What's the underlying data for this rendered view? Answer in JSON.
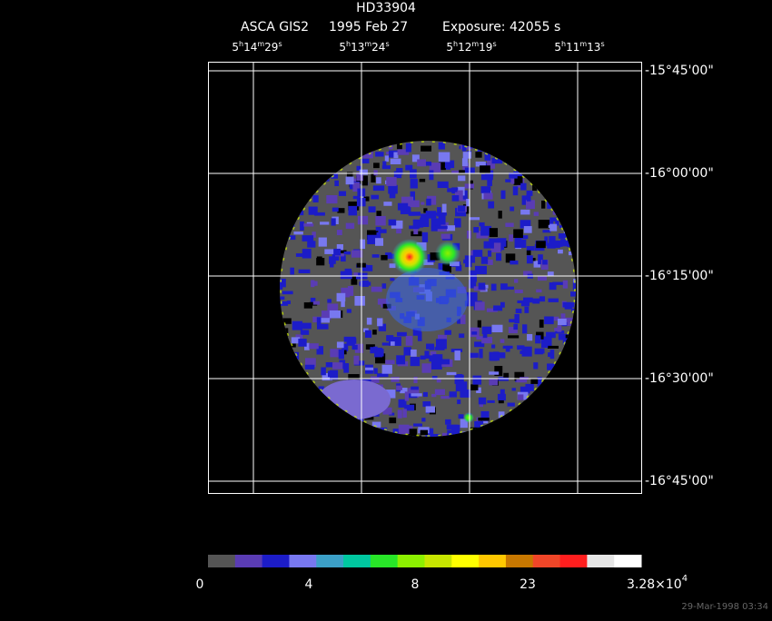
{
  "header": {
    "title": "HD33904",
    "instrument": "ASCA GIS2",
    "date": "1995 Feb 27",
    "exposure": "Exposure: 42055 s"
  },
  "ra_labels": [
    [
      "5",
      "h",
      "14",
      "m",
      "29",
      "s"
    ],
    [
      "5",
      "h",
      "13",
      "m",
      "24",
      "s"
    ],
    [
      "5",
      "h",
      "12",
      "m",
      "19",
      "s"
    ],
    [
      "5",
      "h",
      "11",
      "m",
      "13",
      "s"
    ]
  ],
  "dec_labels": [
    "-15°45'00\"",
    "-16°00'00\"",
    "-16°15'00\"",
    "-16°30'00\"",
    "-16°45'00\""
  ],
  "colorbar": {
    "colors": [
      "#555555",
      "#5a3cb4",
      "#1c1cc8",
      "#7878f0",
      "#3ca0c8",
      "#00c8a0",
      "#28e628",
      "#8cf000",
      "#c8e600",
      "#ffff00",
      "#ffc800",
      "#c87800",
      "#f04628",
      "#ff1e1e",
      "#e6e6e6",
      "#ffffff"
    ],
    "labels": [
      "0",
      "4",
      "8",
      "23"
    ],
    "max_label": {
      "mantissa": "3.28×10",
      "exponent": "4"
    }
  },
  "timestamp": "29-Mar-1998 03:34"
}
